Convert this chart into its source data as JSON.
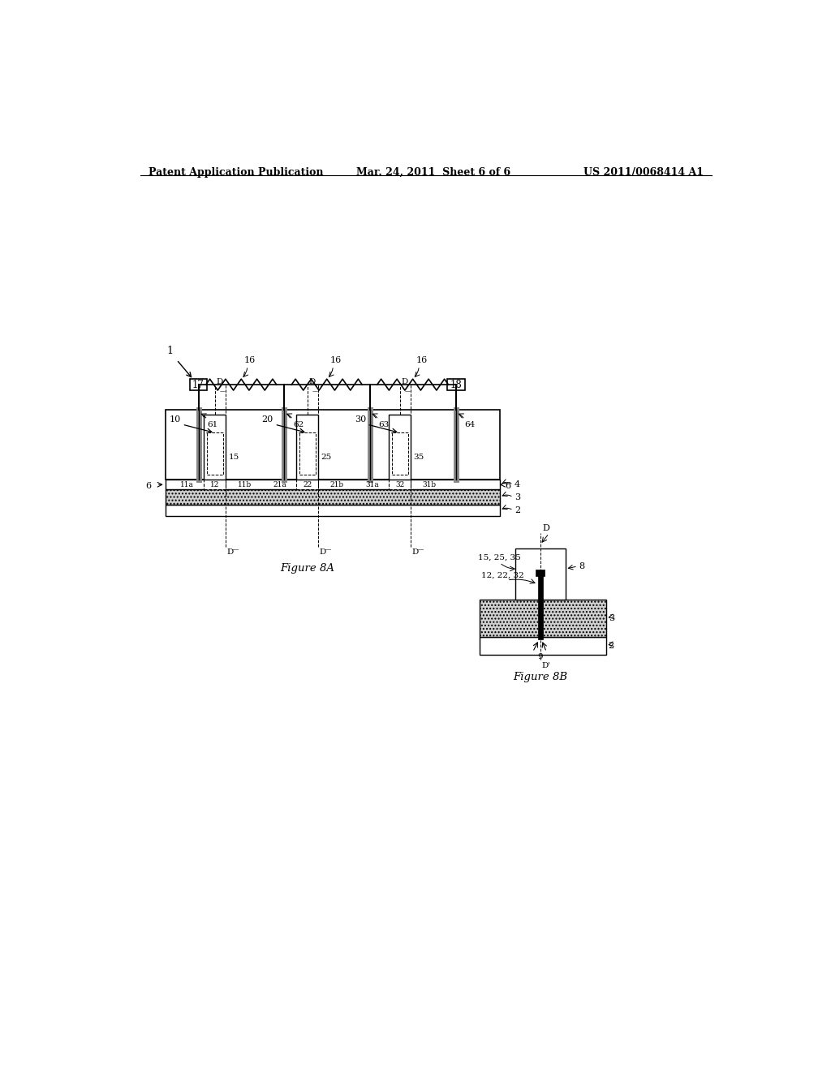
{
  "bg_color": "#ffffff",
  "title_left": "Patent Application Publication",
  "title_mid": "Mar. 24, 2011  Sheet 6 of 6",
  "title_right": "US 2011/0068414 A1",
  "fig8a_caption": "Figure 8A",
  "fig8b_caption": "Figure 8B"
}
